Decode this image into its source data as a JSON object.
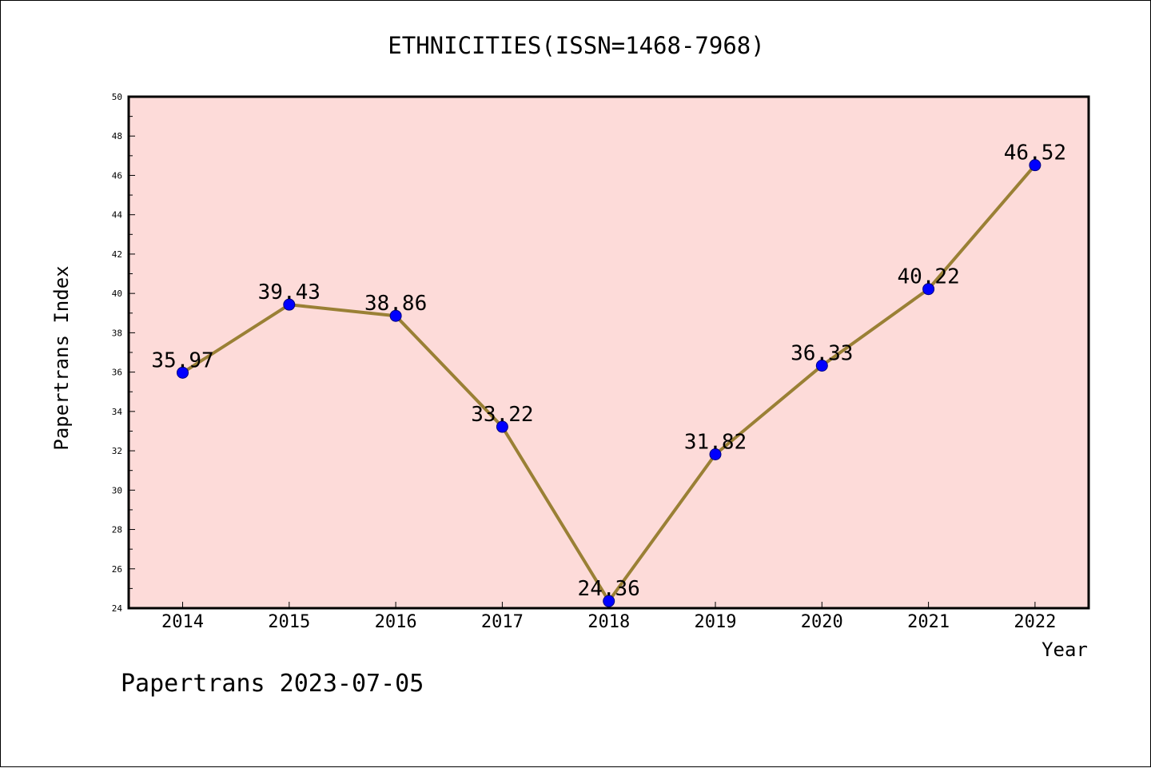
{
  "chart_data": {
    "type": "line",
    "title": "ETHNICITIES(ISSN=1468-7968)",
    "xlabel": "Year",
    "ylabel": "Papertrans Index",
    "footer": "Papertrans 2023-07-05",
    "categories": [
      "2014",
      "2015",
      "2016",
      "2017",
      "2018",
      "2019",
      "2020",
      "2021",
      "2022"
    ],
    "series": [
      {
        "values": [
          35.97,
          39.43,
          38.86,
          33.22,
          24.36,
          31.82,
          36.33,
          40.22,
          46.52
        ]
      }
    ],
    "data_labels": [
      "35.97",
      "39.43",
      "38.86",
      "33.22",
      "24.36",
      "31.82",
      "36.33",
      "40.22",
      "46.52"
    ],
    "ylim": [
      24,
      50
    ],
    "y_ticks": [
      "24",
      "26",
      "28",
      "30",
      "32",
      "34",
      "36",
      "38",
      "40",
      "42",
      "44",
      "46",
      "48",
      "50"
    ],
    "grid": false,
    "legend": "none",
    "colors": {
      "plot_background": "#fddbd9",
      "line": "#9a8035",
      "marker": "#0000ff",
      "marker_edge": "#000080",
      "axes": "#000000"
    }
  }
}
